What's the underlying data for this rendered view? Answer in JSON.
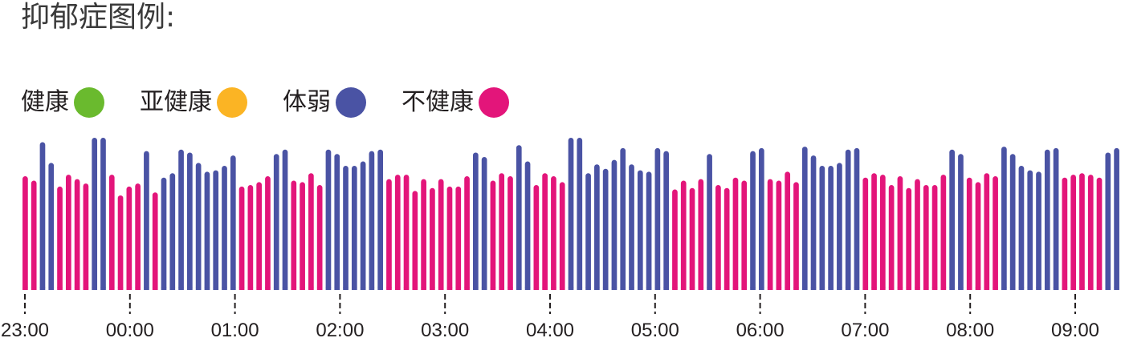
{
  "title": "抑郁症图例:",
  "legend": [
    {
      "label": "健康",
      "color": "#6aba2e"
    },
    {
      "label": "亚健康",
      "color": "#fbb424"
    },
    {
      "label": "体弱",
      "color": "#4a53a4"
    },
    {
      "label": "不健康",
      "color": "#e3157a"
    }
  ],
  "chart_data": {
    "type": "bar",
    "x_ticks": [
      "23:00",
      "00:00",
      "01:00",
      "02:00",
      "03:00",
      "04:00",
      "05:00",
      "06:00",
      "07:00",
      "08:00",
      "09:00"
    ],
    "series_colors": {
      "体弱": "#4a53a4",
      "不健康": "#e3157a"
    },
    "ylim": [
      0,
      100
    ],
    "values": [
      77,
      74,
      100,
      86,
      70,
      78,
      75,
      72,
      103,
      103,
      78,
      64,
      70,
      72,
      94,
      66,
      76,
      79,
      95,
      93,
      86,
      80,
      81,
      84,
      91,
      70,
      71,
      73,
      77,
      92,
      95,
      74,
      73,
      79,
      71,
      95,
      92,
      84,
      84,
      87,
      94,
      95,
      75,
      78,
      78,
      67,
      75,
      69,
      75,
      70,
      70,
      77,
      93,
      90,
      74,
      79,
      77,
      98,
      87,
      71,
      79,
      77,
      73,
      103,
      103,
      79,
      85,
      82,
      88,
      96,
      85,
      81,
      80,
      96,
      94,
      68,
      74,
      69,
      75,
      92,
      71,
      69,
      76,
      74,
      94,
      96,
      75,
      74,
      80,
      73,
      97,
      91,
      84,
      84,
      86,
      95,
      96,
      76,
      79,
      78,
      71,
      77,
      69,
      75,
      71,
      71,
      78,
      95,
      92,
      76,
      73,
      79,
      77,
      97,
      92,
      84,
      81,
      80,
      95,
      96,
      76,
      78,
      79,
      78,
      76,
      93,
      96
    ],
    "series": [
      {
        "name": "体弱",
        "color": "#4a53a4"
      },
      {
        "name": "不健康",
        "color": "#e3157a"
      }
    ],
    "bar_series": [
      1,
      1,
      0,
      0,
      1,
      1,
      1,
      1,
      0,
      0,
      1,
      1,
      1,
      1,
      0,
      1,
      0,
      0,
      0,
      0,
      0,
      0,
      0,
      0,
      0,
      1,
      1,
      1,
      1,
      0,
      0,
      1,
      1,
      1,
      1,
      0,
      0,
      0,
      0,
      0,
      0,
      0,
      1,
      1,
      1,
      1,
      1,
      1,
      1,
      1,
      1,
      1,
      0,
      0,
      1,
      1,
      1,
      0,
      0,
      1,
      1,
      1,
      1,
      0,
      0,
      0,
      0,
      0,
      0,
      0,
      0,
      0,
      0,
      0,
      0,
      1,
      1,
      1,
      1,
      0,
      1,
      1,
      1,
      1,
      0,
      0,
      1,
      1,
      1,
      1,
      0,
      0,
      0,
      0,
      0,
      0,
      0,
      1,
      1,
      1,
      1,
      1,
      1,
      1,
      1,
      1,
      1,
      0,
      0,
      1,
      1,
      1,
      1,
      0,
      0,
      0,
      0,
      0,
      0,
      0,
      1,
      1,
      1,
      1,
      1,
      0,
      0
    ]
  }
}
